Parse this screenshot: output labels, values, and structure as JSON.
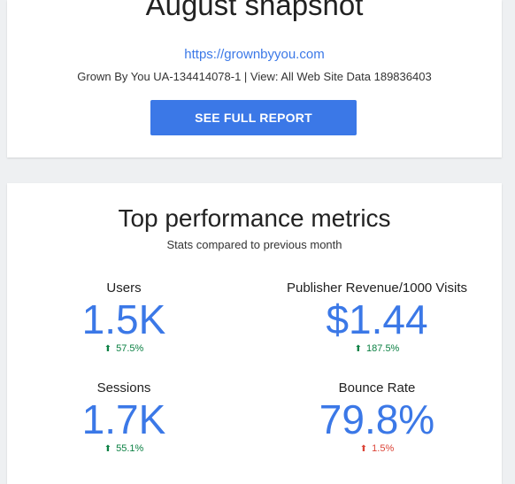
{
  "snapshot": {
    "title": "August snapshot",
    "site_url": "https://grownbyyou.com",
    "property_line": "Grown By You UA-134414078-1  |  View: All Web Site Data 189836403",
    "report_button_label": "SEE FULL REPORT"
  },
  "metrics": {
    "title": "Top performance metrics",
    "subtitle": "Stats compared to previous month",
    "items": [
      {
        "label": "Users",
        "value": "1.5K",
        "change": "57.5%",
        "arrow": "up-arrow-icon",
        "change_color": "#0b8043"
      },
      {
        "label": "Publisher Revenue/1000 Visits",
        "value": "$1.44",
        "change": "187.5%",
        "arrow": "up-arrow-icon",
        "change_color": "#0b8043"
      },
      {
        "label": "Sessions",
        "value": "1.7K",
        "change": "55.1%",
        "arrow": "up-arrow-icon",
        "change_color": "#0b8043"
      },
      {
        "label": "Bounce Rate",
        "value": "79.8%",
        "change": "1.5%",
        "arrow": "up-arrow-icon",
        "change_color": "#db4437"
      }
    ]
  },
  "colors": {
    "accent": "#3b78e7",
    "positive": "#0b8043",
    "negative": "#db4437",
    "background": "#eef0f2"
  }
}
